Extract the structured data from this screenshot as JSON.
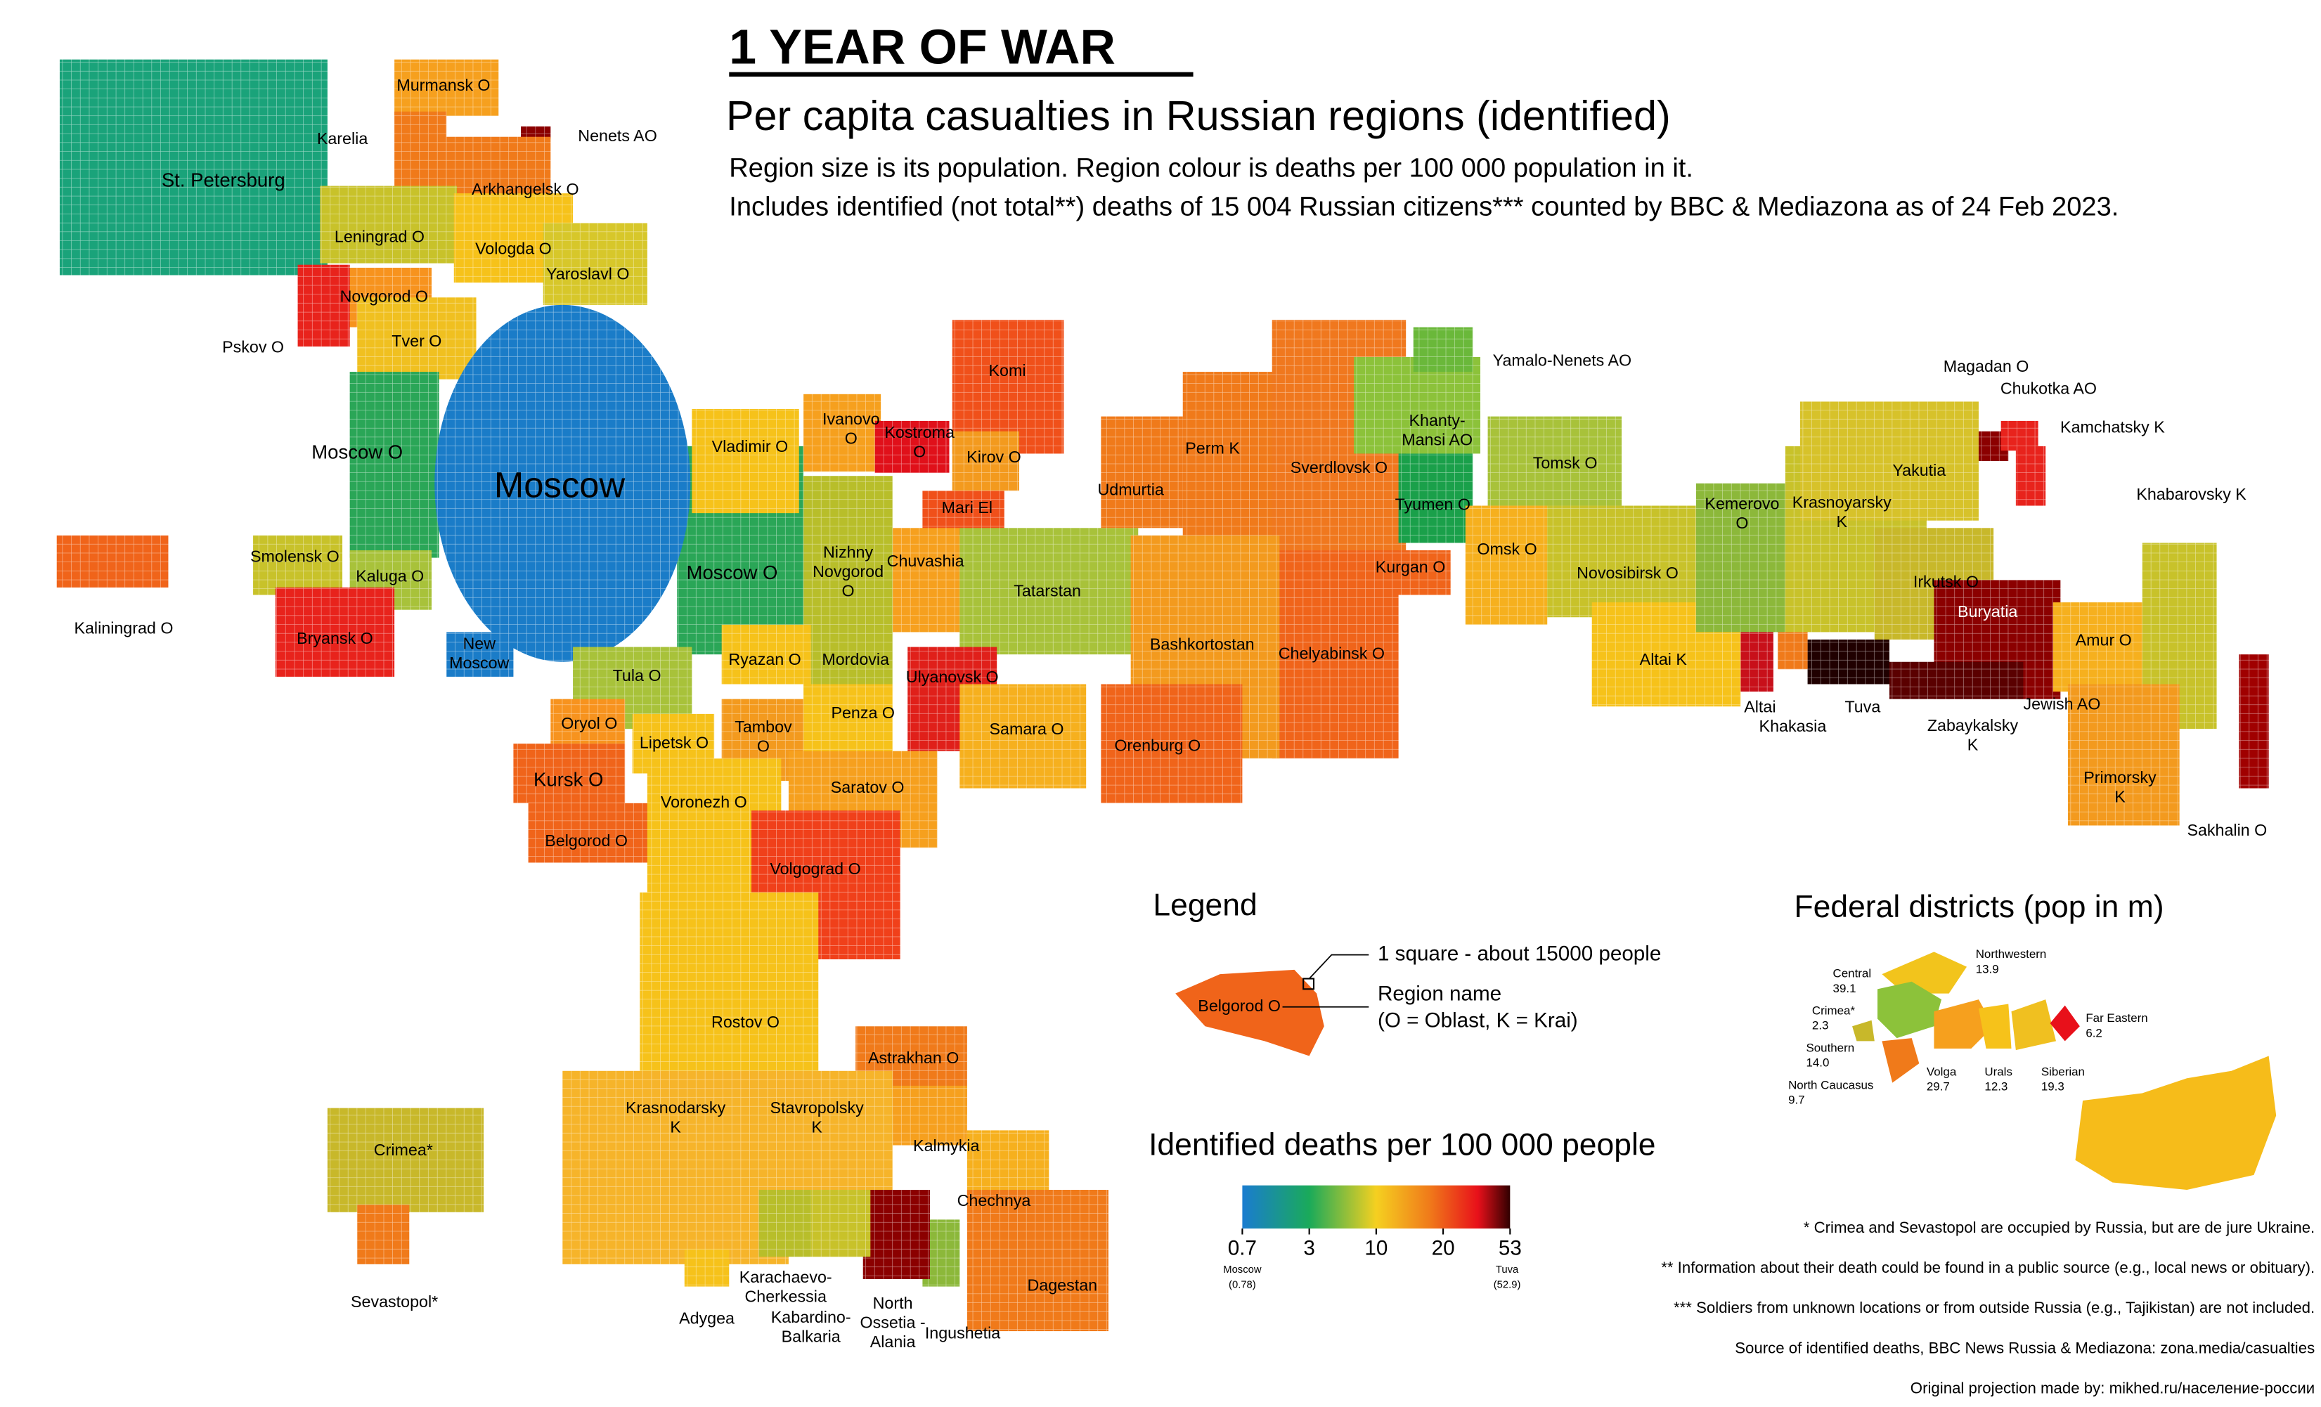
{
  "header": {
    "title": "1 YEAR OF WAR",
    "subtitle": "Per capita casualties in Russian regions (identified)",
    "description": [
      "Region size is its population. Region colour is deaths per 100 000 population in it.",
      "Includes identified (not total**) deaths of 15 004 Russian citizens*** counted by BBC & Mediazona as of 24 Feb 2023."
    ]
  },
  "regions": [
    [
      "St. Petersburg"
    ],
    [
      "Murmansk O"
    ],
    [
      "Karelia"
    ],
    [
      "Nenets AO"
    ],
    [
      "Arkhangelsk O"
    ],
    [
      "Leningrad O"
    ],
    [
      "Vologda O"
    ],
    [
      "Yaroslavl O"
    ],
    [
      "Novgorod O"
    ],
    [
      "Pskov O"
    ],
    [
      "Tver O"
    ],
    [
      "Moscow O"
    ],
    [
      "Moscow O"
    ],
    [
      "Moscow"
    ],
    [
      "New",
      "Moscow"
    ],
    [
      "Smolensk O"
    ],
    [
      "Kaluga O"
    ],
    [
      "Bryansk O"
    ],
    [
      "Kaliningrad O"
    ],
    [
      "Vladimir O"
    ],
    [
      "Ivanovo",
      "O"
    ],
    [
      "Kostroma",
      "O"
    ],
    [
      "Komi"
    ],
    [
      "Kirov O"
    ],
    [
      "Mari El"
    ],
    [
      "Nizhny",
      "Novgorod",
      "O"
    ],
    [
      "Chuvashia"
    ],
    [
      "Tatarstan"
    ],
    [
      "Udmurtia"
    ],
    [
      "Perm K"
    ],
    [
      "Sverdlovsk O"
    ],
    [
      "Khanty-",
      "Mansi AO"
    ],
    [
      "Yamalo-Nenets AO"
    ],
    [
      "Tyumen O"
    ],
    [
      "Tomsk O"
    ],
    [
      "Omsk O"
    ],
    [
      "Kurgan O"
    ],
    [
      "Chelyabinsk O"
    ],
    [
      "Bashkortostan"
    ],
    [
      "Novosibirsk O"
    ],
    [
      "Altai K"
    ],
    [
      "Kemerovo",
      "O"
    ],
    [
      "Krasnoyarsky",
      "K"
    ],
    [
      "Yakutia"
    ],
    [
      "Magadan O"
    ],
    [
      "Chukotka AO"
    ],
    [
      "Kamchatsky K"
    ],
    [
      "Irkutsk O"
    ],
    [
      "Buryatia"
    ],
    [
      "Zabaykalsky",
      "K"
    ],
    [
      "Tuva"
    ],
    [
      "Altai"
    ],
    [
      "Khakasia"
    ],
    [
      "Amur O"
    ],
    [
      "Jewish AO"
    ],
    [
      "Khabarovsky K"
    ],
    [
      "Primorsky",
      "K"
    ],
    [
      "Sakhalin O"
    ],
    [
      "Tula O"
    ],
    [
      "Ryazan O"
    ],
    [
      "Mordovia"
    ],
    [
      "Ulyanovsk O"
    ],
    [
      "Samara O"
    ],
    [
      "Orenburg O"
    ],
    [
      "Oryol O"
    ],
    [
      "Lipetsk O"
    ],
    [
      "Tambov",
      "O"
    ],
    [
      "Penza O"
    ],
    [
      "Saratov O"
    ],
    [
      "Kursk O"
    ],
    [
      "Belgorod O"
    ],
    [
      "Voronezh O"
    ],
    [
      "Volgograd O"
    ],
    [
      "Rostov O"
    ],
    [
      "Astrakhan O"
    ],
    [
      "Kalmykia"
    ],
    [
      "Krasnodarsky",
      "K"
    ],
    [
      "Stavropolsky",
      "K"
    ],
    [
      "Chechnya"
    ],
    [
      "Dagestan"
    ],
    [
      "Ingushetia"
    ],
    [
      "North",
      "Ossetia -",
      "Alania"
    ],
    [
      "Kabardino-",
      "Balkaria"
    ],
    [
      "Karachaevo-",
      "Cherkessia"
    ],
    [
      "Adygea"
    ],
    [
      "Crimea*"
    ],
    [
      "Sevastopol*"
    ]
  ],
  "legend": {
    "title": "Legend",
    "square": "1 square - about 15000 people",
    "region_name": "Region name",
    "abbrev": "(O = Oblast, K = Krai)",
    "example": "Belgorod O"
  },
  "colorbar": {
    "title": "Identified deaths per 100 000 people",
    "ticks": [
      0.7,
      3,
      10,
      20,
      53
    ],
    "min_note": [
      "Moscow",
      "(0.78)"
    ],
    "max_note": [
      "Tuva",
      "(52.9)"
    ]
  },
  "federal_districts": {
    "title": "Federal districts (pop in m)",
    "items": [
      {
        "name": "Northwestern",
        "pop": 13.9
      },
      {
        "name": "Central",
        "pop": 39.1
      },
      {
        "name": "Crimea*",
        "pop": 2.3
      },
      {
        "name": "Southern",
        "pop": {
          "value": 14,
          "label": "14.0"
        }
      },
      {
        "name": "North Caucasus",
        "pop": 9.7
      },
      {
        "name": "Volga",
        "pop": 29.7
      },
      {
        "name": "Urals",
        "pop": 12.3
      },
      {
        "name": "Siberian",
        "pop": 19.3
      },
      {
        "name": "Far Eastern",
        "pop": 6.2
      }
    ]
  },
  "footnotes": [
    "* Crimea and Sevastopol are occupied by Russia, but are de jure Ukraine.",
    "** Information about their death could be found in a public source (e.g., local news or obituary).",
    "*** Soldiers from unknown locations or from outside Russia (e.g., Tajikistan) are not included.",
    "Source of identified deaths, BBC News Russia & Mediazona: zona.media/casualties",
    "Original projection made by: mikhed.ru/население-россии"
  ]
}
